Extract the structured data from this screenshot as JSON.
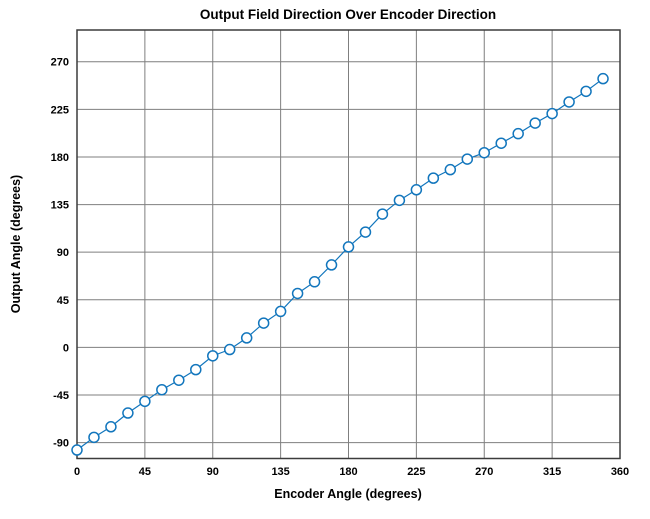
{
  "figure": {
    "background": "#ffffff"
  },
  "chart_data": {
    "type": "line",
    "title": "Output Field Direction Over Encoder Direction",
    "xlabel": "Encoder Angle (degrees)",
    "ylabel": "Output Angle (degrees)",
    "xlim": [
      0,
      360
    ],
    "ylim": [
      -105,
      300
    ],
    "xticks": [
      0,
      45,
      90,
      135,
      180,
      225,
      270,
      315,
      360
    ],
    "yticks": [
      -90,
      -45,
      0,
      45,
      90,
      135,
      180,
      225,
      270
    ],
    "grid": true,
    "legend_position": "none",
    "marker": "open-circle",
    "line_style": "solid",
    "line_color": "#1276bd",
    "marker_color": "#1276bd",
    "grid_color": "#7f7f7f",
    "axis_color": "#3c3c3c",
    "series": [
      {
        "name": "Output Angle",
        "x": [
          0,
          11.25,
          22.5,
          33.75,
          45,
          56.25,
          67.5,
          78.75,
          90,
          101.25,
          112.5,
          123.75,
          135,
          146.25,
          157.5,
          168.75,
          180,
          191.25,
          202.5,
          213.75,
          225,
          236.25,
          247.5,
          258.75,
          270,
          281.25,
          292.5,
          303.75,
          315,
          326.25,
          337.5,
          348.75
        ],
        "y": [
          -97,
          -85,
          -75,
          -62,
          -51,
          -40,
          -31,
          -21,
          -8,
          -2,
          9,
          23,
          34,
          51,
          62,
          78,
          95,
          109,
          126,
          139,
          149,
          160,
          168,
          178,
          184,
          193,
          202,
          212,
          221,
          232,
          242,
          254
        ]
      }
    ]
  }
}
